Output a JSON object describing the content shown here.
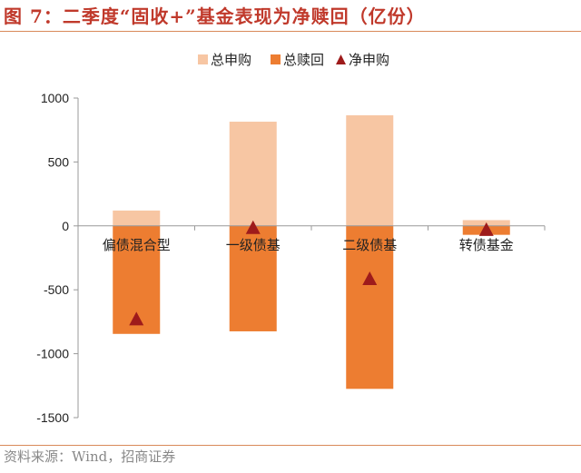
{
  "header": {
    "title": "图 7：二季度“固收+”基金表现为净赎回（亿份）"
  },
  "footer": {
    "source": "资料来源：Wind，招商证券"
  },
  "chart_data": {
    "type": "bar",
    "categories": [
      "偏债混合型",
      "一级债基",
      "二级债基",
      "转债基金"
    ],
    "series": [
      {
        "name": "总申购",
        "kind": "bar",
        "color": "#f7c6a3",
        "values": [
          120,
          815,
          865,
          45
        ]
      },
      {
        "name": "总赎回",
        "kind": "bar",
        "color": "#ed7d31",
        "values": [
          -845,
          -825,
          -1275,
          -70
        ]
      },
      {
        "name": "净申购",
        "kind": "marker",
        "color": "#9e1b1b",
        "values": [
          -725,
          -10,
          -410,
          -25
        ]
      }
    ],
    "y_ticks": [
      1000,
      500,
      0,
      -500,
      -1000,
      -1500
    ],
    "ylim": [
      -1500,
      1000
    ],
    "legend_position": "top",
    "grid": false
  }
}
